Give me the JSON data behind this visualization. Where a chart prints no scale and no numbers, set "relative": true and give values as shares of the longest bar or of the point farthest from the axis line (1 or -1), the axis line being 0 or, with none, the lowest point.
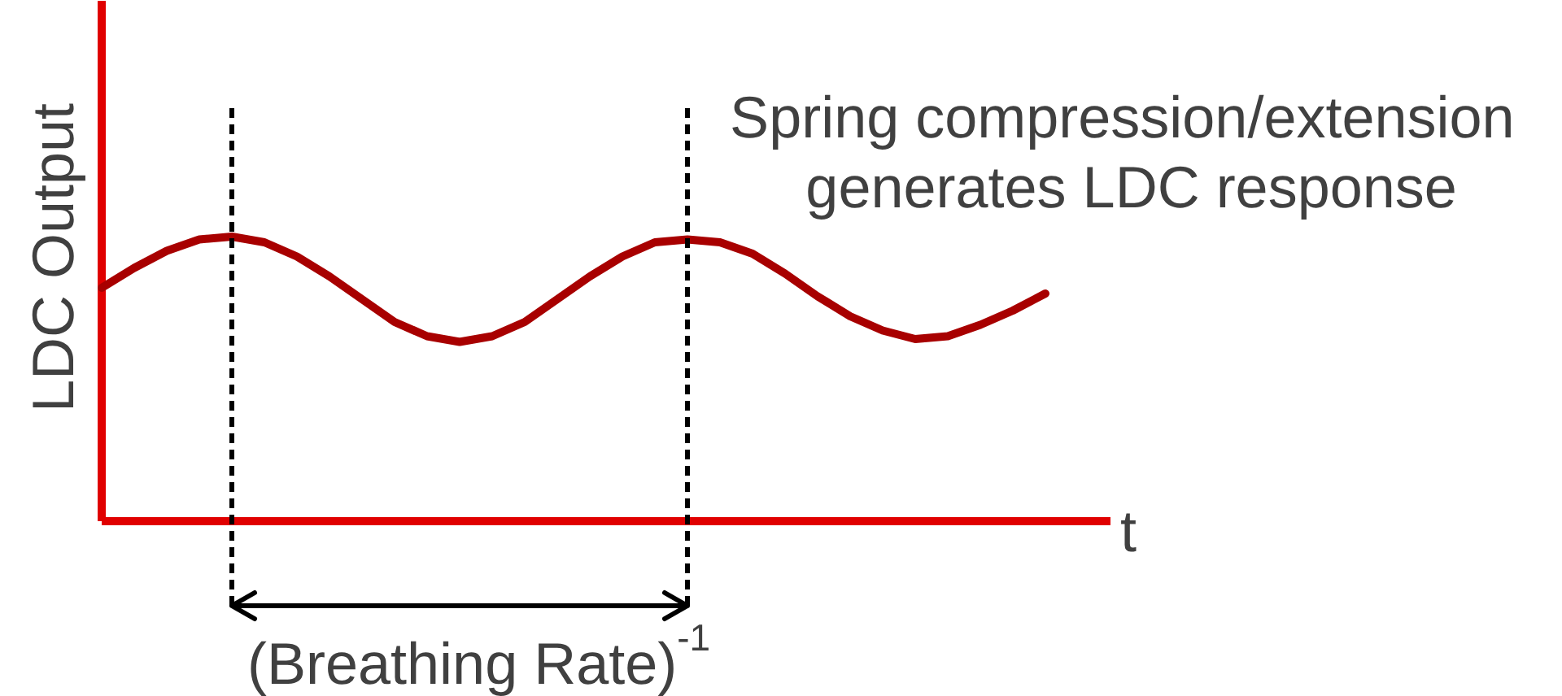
{
  "chart_data": {
    "type": "line",
    "relative": true,
    "xlabel": "t",
    "ylabel": "LDC Output",
    "categories": [
      null,
      null,
      null,
      null,
      null,
      null,
      null,
      null,
      null,
      null,
      null,
      null,
      null,
      null,
      null,
      null,
      null,
      null,
      null,
      null,
      null,
      null,
      null,
      null,
      null,
      null,
      null,
      null,
      null,
      null
    ],
    "series": [
      {
        "color": "#a80000",
        "values": [
          0.82,
          0.89,
          0.95,
          0.99,
          1,
          0.98,
          0.93,
          0.86,
          0.78,
          0.7,
          0.65,
          0.63,
          0.65,
          0.7,
          0.78,
          0.86,
          0.93,
          0.98,
          0.99,
          0.98,
          0.94,
          0.87,
          0.79,
          0.72,
          0.67,
          0.64,
          0.65,
          0.69,
          0.74,
          0.8
        ]
      }
    ],
    "annotations": [
      "Spring compression/extension\ngenerates LDC response",
      "(Breathing Rate)$^{-1}$"
    ],
    "line_style": "solid"
  }
}
